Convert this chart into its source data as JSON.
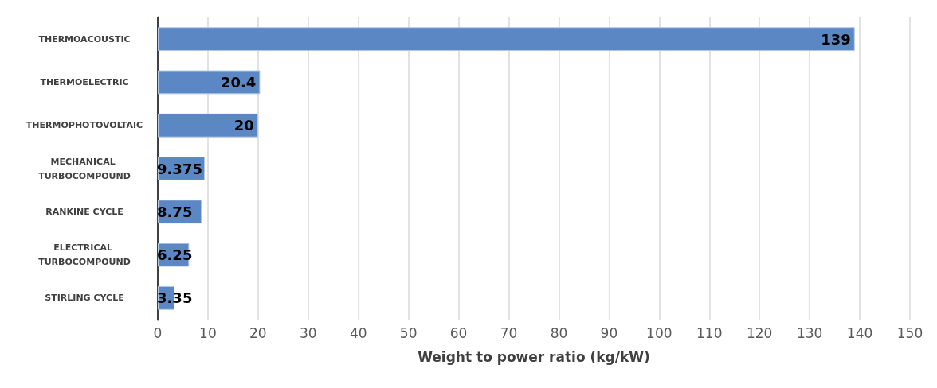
{
  "chart_data": {
    "type": "bar",
    "orientation": "horizontal",
    "xlabel": "Weight to power ratio (kg/kW)",
    "categories": [
      "THERMOACOUSTIC",
      "THERMOELECTRIC",
      "THERMOPHOTOVOLTAIC",
      "MECHANICAL TURBOCOMPOUND",
      "RANKINE CYCLE",
      "ELECTRICAL TURBOCOMPOUND",
      "STIRLING CYCLE"
    ],
    "values": [
      139,
      20.4,
      20,
      9.375,
      8.75,
      6.25,
      3.35
    ],
    "color": "#5b87c5",
    "xlim": [
      0,
      150
    ],
    "xticks": [
      0,
      10,
      20,
      30,
      40,
      50,
      60,
      70,
      80,
      90,
      100,
      110,
      120,
      130,
      140,
      150
    ],
    "grid": "x",
    "data_labels": true
  }
}
